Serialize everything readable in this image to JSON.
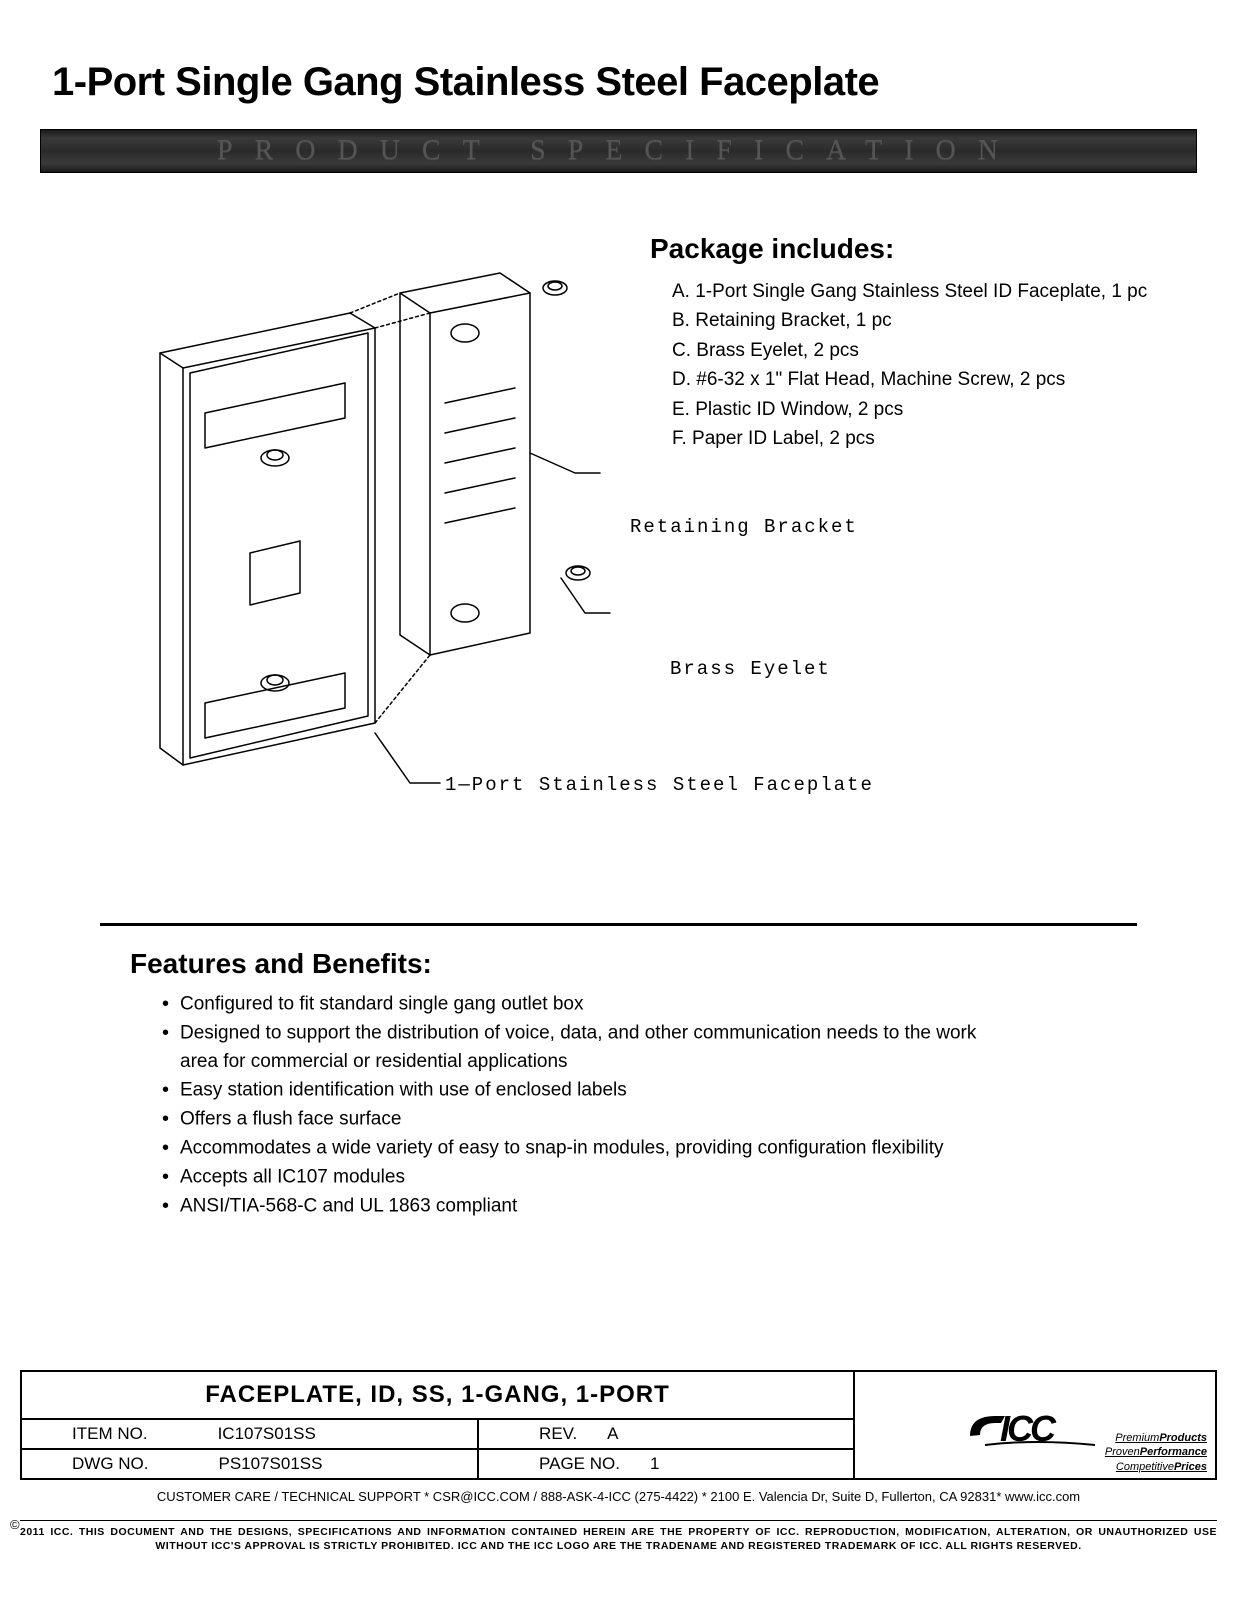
{
  "title": "1-Port Single Gang Stainless Steel Faceplate",
  "spec_bar": "PRODUCT   SPECIFICATION",
  "package": {
    "heading": "Package includes:",
    "items": [
      "A. 1-Port Single Gang Stainless Steel ID Faceplate, 1 pc",
      "B. Retaining Bracket, 1 pc",
      "C. Brass Eyelet, 2 pcs",
      "D. #6-32 x 1\" Flat Head,  Machine Screw, 2 pcs",
      "E. Plastic ID Window, 2 pcs",
      "F. Paper ID Label, 2 pcs"
    ]
  },
  "callouts": {
    "retaining_bracket": "Retaining Bracket",
    "brass_eyelet": "Brass Eyelet",
    "faceplate": "1—Port Stainless Steel Faceplate"
  },
  "features": {
    "heading": "Features and Benefits:",
    "items": [
      "Configured to fit standard single gang outlet box",
      "Designed to support the distribution of voice, data, and other communication needs to the work area for commercial or residential applications",
      "Easy station identification with use of enclosed labels",
      "Offers a flush face surface",
      "Accommodates a wide variety of easy to snap-in modules, providing configuration flexibility",
      "Accepts all IC107 modules",
      "ANSI/TIA-568-C and UL 1863 compliant"
    ]
  },
  "titleblock": {
    "heading": "FACEPLATE, ID, SS, 1-GANG, 1-PORT",
    "item_label": "ITEM  NO.",
    "item_value": "IC107S01SS",
    "rev_label": "REV.",
    "rev_value": "A",
    "dwg_label": "DWG  NO.",
    "dwg_value": "PS107S01SS",
    "page_label": "PAGE  NO.",
    "page_value": "1"
  },
  "logo": {
    "name": "ICC",
    "tag1": "PremiumProducts",
    "tag2": "ProvenPerformance",
    "tag3": "CompetitivePrices"
  },
  "footer": {
    "support": "CUSTOMER CARE / TECHNICAL SUPPORT * CSR@ICC.COM / 888-ASK-4-ICC (275-4422) * 2100 E. Valencia Dr, Suite D, Fullerton, CA 92831* www.icc.com",
    "legal": "2011 ICC. THIS DOCUMENT AND THE DESIGNS, SPECIFICATIONS AND INFORMATION CONTAINED HEREIN ARE THE PROPERTY OF ICC. REPRODUCTION, MODIFICATION, ALTERATION, OR UNAUTHORIZED USE WITHOUT ICC'S APPROVAL IS STRICTLY PROHIBITED. ICC AND THE ICC LOGO ARE THE TRADENAME AND REGISTERED TRADEMARK OF ICC.  ALL RIGHTS RESERVED.",
    "copyright_symbol": "©"
  },
  "diagram": {
    "stroke": "#000000",
    "stroke_width": 1.4
  }
}
